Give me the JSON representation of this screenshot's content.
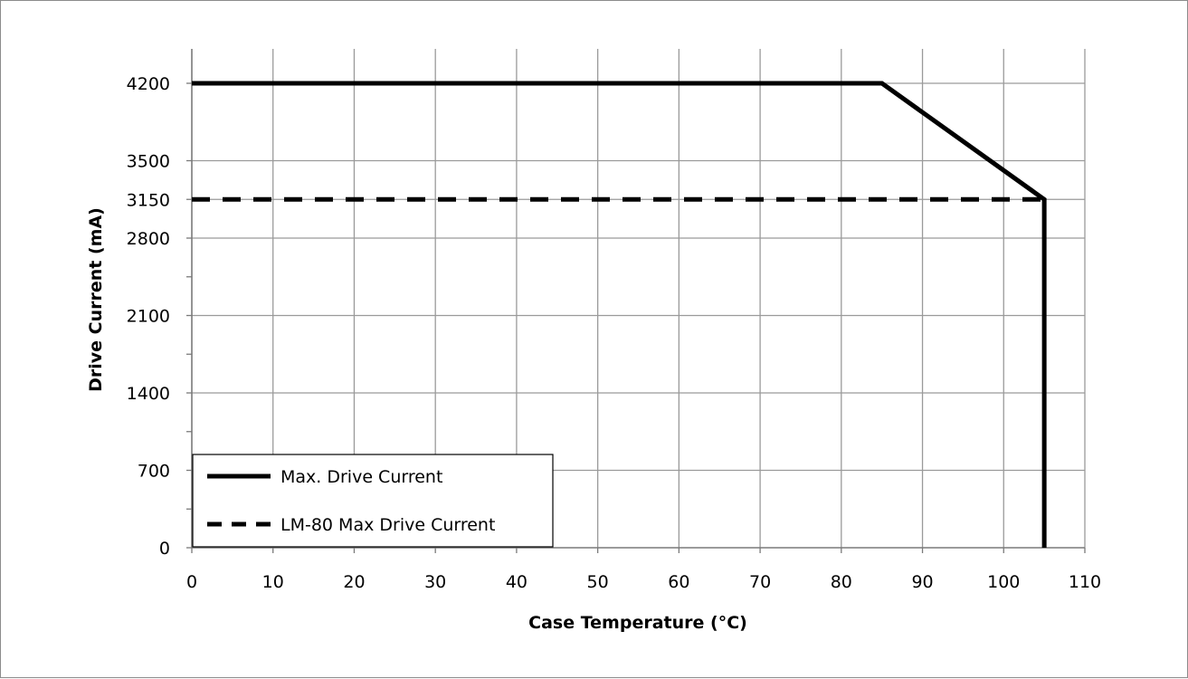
{
  "chart_data": {
    "type": "line",
    "title": "",
    "xlabel": "Case Temperature (°C)",
    "ylabel": "Drive Current (mA)",
    "xlim": [
      0,
      110
    ],
    "ylim": [
      0,
      4200
    ],
    "x_ticks": [
      0,
      10,
      20,
      30,
      40,
      50,
      60,
      70,
      80,
      90,
      100,
      110
    ],
    "y_ticks": [
      0,
      700,
      1400,
      2100,
      2800,
      3150,
      3500,
      4200
    ],
    "grid": true,
    "legend_position": "bottom-left",
    "series": [
      {
        "name": "Max. Drive Current",
        "style": "solid",
        "color": "#000000",
        "points": [
          [
            0,
            4200
          ],
          [
            85,
            4200
          ],
          [
            105,
            3150
          ],
          [
            105,
            0
          ]
        ]
      },
      {
        "name": "LM-80 Max Drive Current",
        "style": "dashed",
        "color": "#000000",
        "points": [
          [
            0,
            3150
          ],
          [
            105,
            3150
          ]
        ]
      }
    ]
  }
}
